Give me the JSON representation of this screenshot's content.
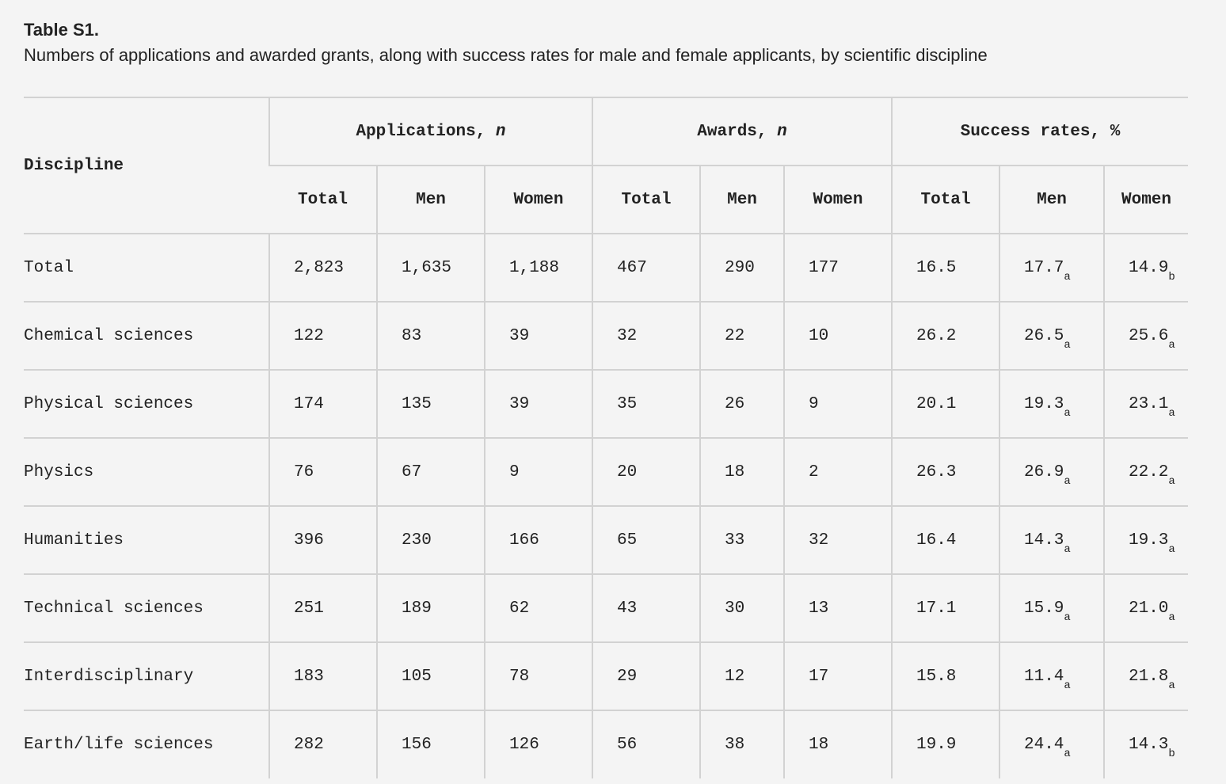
{
  "caption": {
    "title": "Table S1.",
    "description": "Numbers of applications and awarded grants, along with success rates for male and female applicants, by scientific discipline"
  },
  "table": {
    "header": {
      "discipline": "Discipline",
      "groups": [
        {
          "label": "Applications, ",
          "unit": "n"
        },
        {
          "label": "Awards, ",
          "unit": "n"
        },
        {
          "label": "Success rates, %",
          "unit": ""
        }
      ],
      "subcolumns": [
        "Total",
        "Men",
        "Women",
        "Total",
        "Men",
        "Women",
        "Total",
        "Men",
        "Women"
      ]
    },
    "rows": [
      {
        "discipline": "Total",
        "values": [
          "2,823",
          "1,635",
          "1,188",
          "467",
          "290",
          "177",
          "16.5",
          "17.7",
          "14.9"
        ],
        "subs": [
          "a",
          "b"
        ]
      },
      {
        "discipline": "Chemical sciences",
        "values": [
          "122",
          "83",
          "39",
          "32",
          "22",
          "10",
          "26.2",
          "26.5",
          "25.6"
        ],
        "subs": [
          "a",
          "a"
        ]
      },
      {
        "discipline": "Physical sciences",
        "values": [
          "174",
          "135",
          "39",
          "35",
          "26",
          "9",
          "20.1",
          "19.3",
          "23.1"
        ],
        "subs": [
          "a",
          "a"
        ]
      },
      {
        "discipline": "Physics",
        "values": [
          "76",
          "67",
          "9",
          "20",
          "18",
          "2",
          "26.3",
          "26.9",
          "22.2"
        ],
        "subs": [
          "a",
          "a"
        ]
      },
      {
        "discipline": "Humanities",
        "values": [
          "396",
          "230",
          "166",
          "65",
          "33",
          "32",
          "16.4",
          "14.3",
          "19.3"
        ],
        "subs": [
          "a",
          "a"
        ]
      },
      {
        "discipline": "Technical sciences",
        "values": [
          "251",
          "189",
          "62",
          "43",
          "30",
          "13",
          "17.1",
          "15.9",
          "21.0"
        ],
        "subs": [
          "a",
          "a"
        ]
      },
      {
        "discipline": "Interdisciplinary",
        "values": [
          "183",
          "105",
          "78",
          "29",
          "12",
          "17",
          "15.8",
          "11.4",
          "21.8"
        ],
        "subs": [
          "a",
          "a"
        ]
      },
      {
        "discipline": "Earth/life sciences",
        "values": [
          "282",
          "156",
          "126",
          "56",
          "38",
          "18",
          "19.9",
          "24.4",
          "14.3"
        ],
        "subs": [
          "a",
          "b"
        ]
      }
    ]
  }
}
